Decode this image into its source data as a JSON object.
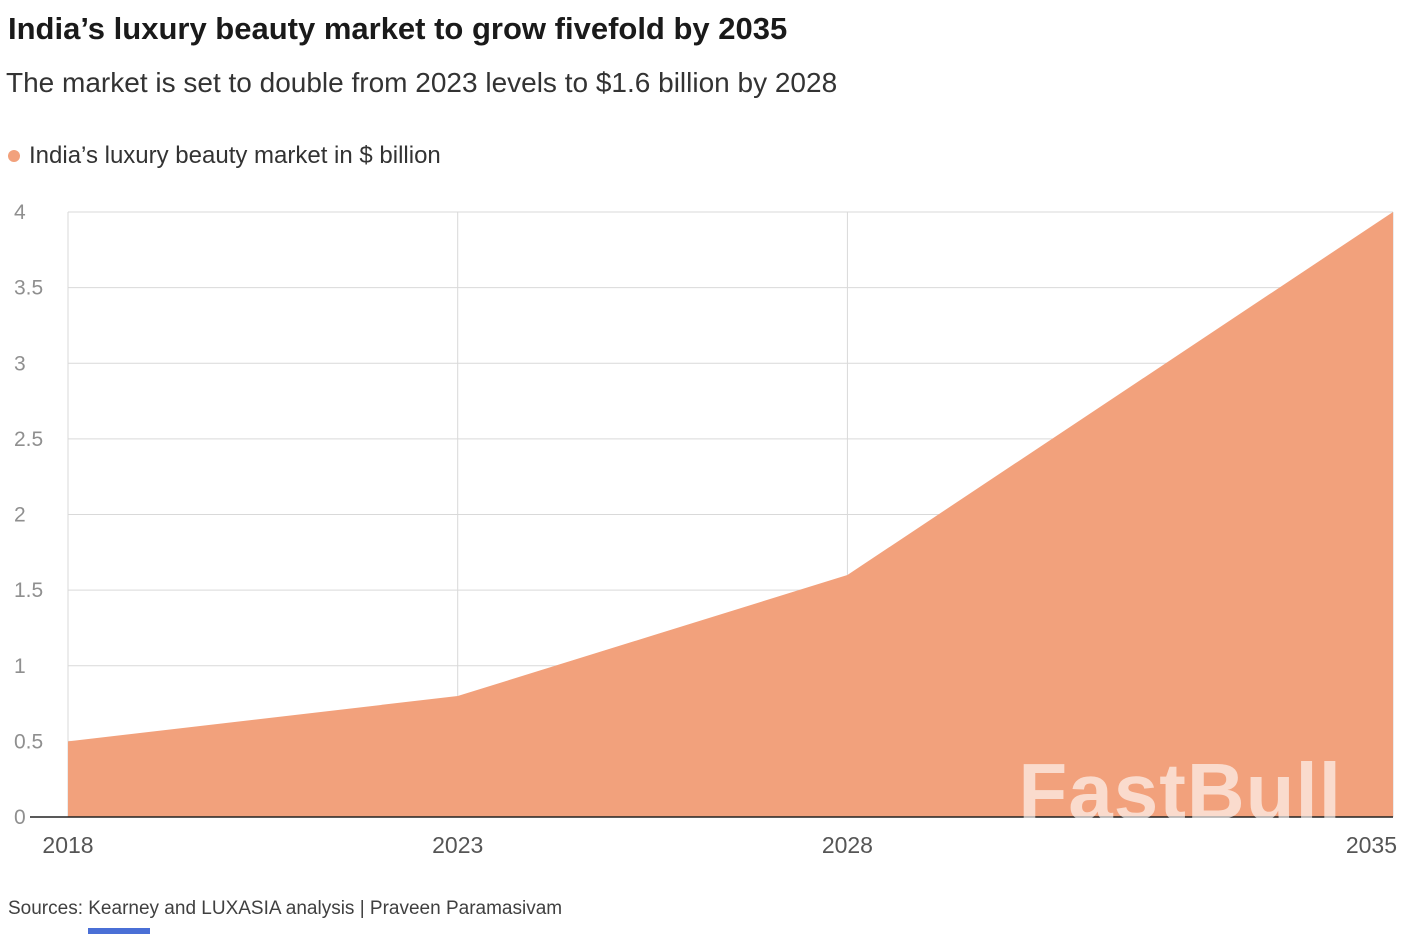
{
  "header": {
    "title": "India’s luxury beauty market to grow fivefold by 2035",
    "subtitle": "The market is set to double from 2023 levels to $1.6 billion by 2028"
  },
  "legend": {
    "label": "India’s luxury beauty market in $ billion",
    "color": "#f2a17c"
  },
  "chart_data": {
    "type": "area",
    "title": "India’s luxury beauty market to grow fivefold by 2035",
    "subtitle": "The market is set to double from 2023 levels to $1.6 billion by 2028",
    "series_name": "India’s luxury beauty market in $ billion",
    "x": [
      2018,
      2023,
      2028,
      2035
    ],
    "values": [
      0.5,
      0.8,
      1.6,
      4.0
    ],
    "xlabel": "",
    "ylabel": "",
    "xlim": [
      2018,
      2035
    ],
    "ylim": [
      0,
      4
    ],
    "x_ticks": [
      2018,
      2023,
      2028,
      2035
    ],
    "y_ticks": [
      0,
      0.5,
      1,
      1.5,
      2,
      2.5,
      3,
      3.5,
      4
    ],
    "grid": true,
    "legend_position": "top-left",
    "fill_color": "#f2a17c",
    "grid_color": "#d9d9d9",
    "axis_line_color": "#222222",
    "y_tick_color": "#8f8f8f",
    "x_tick_color": "#555555"
  },
  "watermark": "FastBull",
  "footer": {
    "source": "Sources: Kearney and LUXASIA analysis | Praveen Paramasivam",
    "bottom_bar_color": "#4a6fd6"
  }
}
